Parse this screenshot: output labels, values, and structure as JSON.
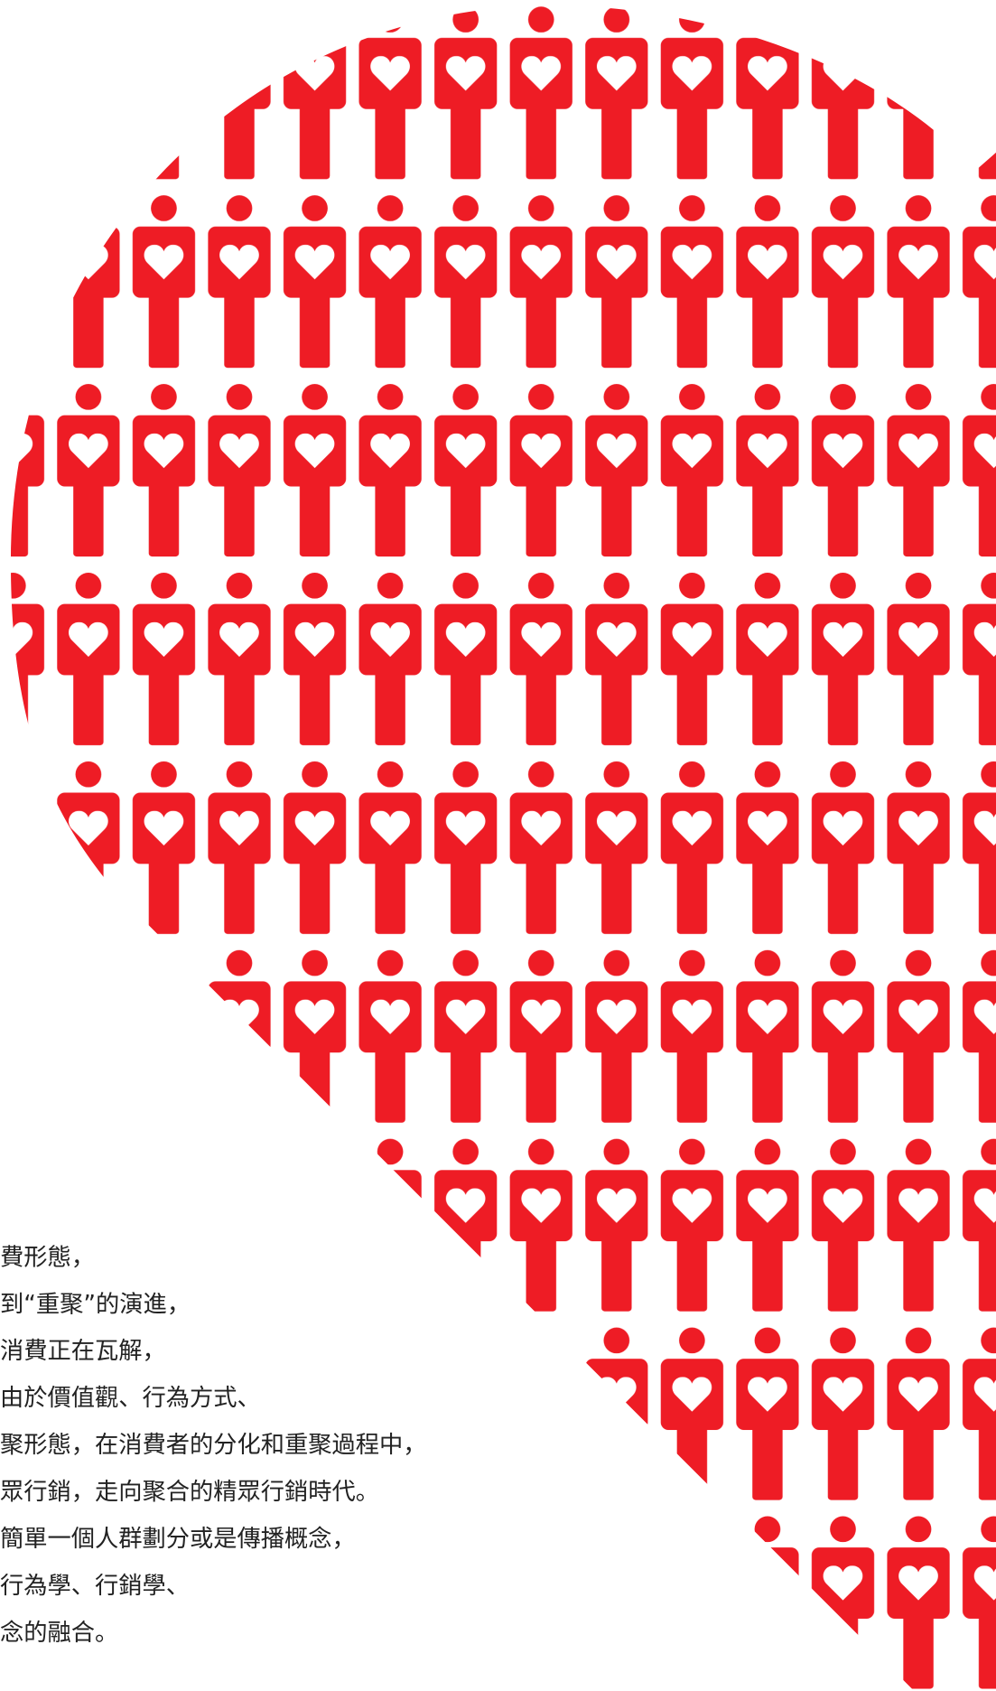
{
  "text": {
    "lines": [
      "費形態，",
      "到“重聚”的演進，",
      "消費正在瓦解，",
      "由於價值觀、行為方式、",
      "聚形態，在消費者的分化和重聚過程中，",
      "眾行銷，走向聚合的精眾行銷時代。",
      "簡單一個人群劃分或是傳播概念，",
      "行為學、行銷學、",
      "念的融合。"
    ]
  }
}
